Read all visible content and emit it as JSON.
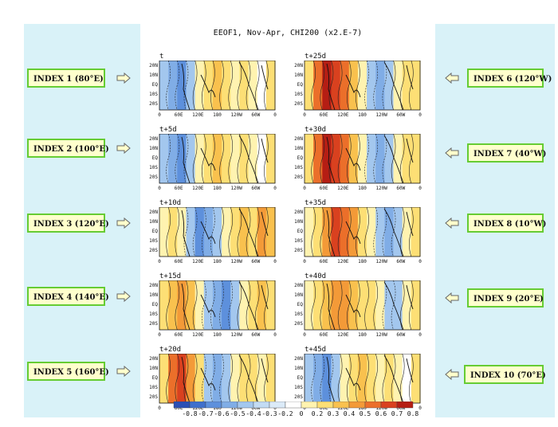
{
  "title": "EEOF1, Nov-Apr, CHI200 (x2.E-7)",
  "left_indices": [
    {
      "label": "INDEX 1 (80°E)"
    },
    {
      "label": "INDEX 2 (100°E)"
    },
    {
      "label": "INDEX 3 (120°E)"
    },
    {
      "label": "INDEX 4 (140°E)"
    },
    {
      "label": "INDEX 5 (160°E)"
    }
  ],
  "right_indices": [
    {
      "label": "INDEX 6 (120°W)"
    },
    {
      "label": "INDEX 7 (40°W)"
    },
    {
      "label": "INDEX 8 (10°W)"
    },
    {
      "label": "INDEX 9 (20°E)"
    },
    {
      "label": "INDEX 10 (70°E)"
    }
  ],
  "panels_left": [
    {
      "label": "t",
      "pattern": "blue-west"
    },
    {
      "label": "t+5d",
      "pattern": "blue-west"
    },
    {
      "label": "t+10d",
      "pattern": "blue-center"
    },
    {
      "label": "t+15d",
      "pattern": "blue-east"
    },
    {
      "label": "t+20d",
      "pattern": "red-west"
    }
  ],
  "panels_right": [
    {
      "label": "t+25d",
      "pattern": "red-strong"
    },
    {
      "label": "t+30d",
      "pattern": "red-strong"
    },
    {
      "label": "t+35d",
      "pattern": "red-center"
    },
    {
      "label": "t+40d",
      "pattern": "red-weak"
    },
    {
      "label": "t+45d",
      "pattern": "blue-west"
    }
  ],
  "lat_ticks": [
    "20N",
    "10N",
    "EQ",
    "10S",
    "20S"
  ],
  "lon_ticks": [
    "0",
    "60E",
    "120E",
    "180",
    "120W",
    "60W",
    "0"
  ],
  "colorbar": {
    "labels": [
      "-0.8",
      "-0.7",
      "-0.6",
      "-0.5",
      "-0.4",
      "-0.3",
      "-0.2",
      "0",
      "0.2",
      "0.3",
      "0.4",
      "0.5",
      "0.6",
      "0.7",
      "0.8"
    ],
    "colors": [
      "#2b4fb5",
      "#3f70cc",
      "#5d90dc",
      "#80ade6",
      "#a3c7ee",
      "#c2dbf4",
      "#dbeaf8",
      "#ffffff",
      "#fff3b0",
      "#fddf75",
      "#f9c14e",
      "#f39a38",
      "#eb6f2a",
      "#d9411f",
      "#b51e14"
    ]
  }
}
